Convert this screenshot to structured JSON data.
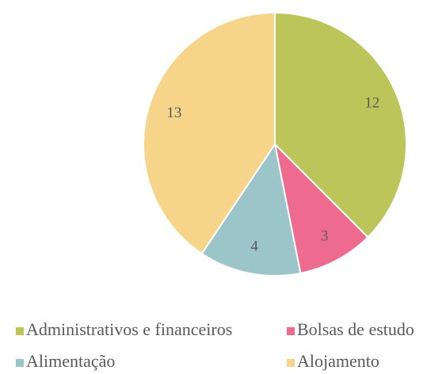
{
  "chart_data": {
    "type": "pie",
    "categories": [
      "Administrativos e financeiros",
      "Bolsas de estudo",
      "Alimentação",
      "Alojamento"
    ],
    "values": [
      12,
      3,
      4,
      13
    ],
    "colors": [
      "#bbc55a",
      "#ee6a8f",
      "#9bc5c9",
      "#f6d58a"
    ],
    "legend": "bottom"
  }
}
